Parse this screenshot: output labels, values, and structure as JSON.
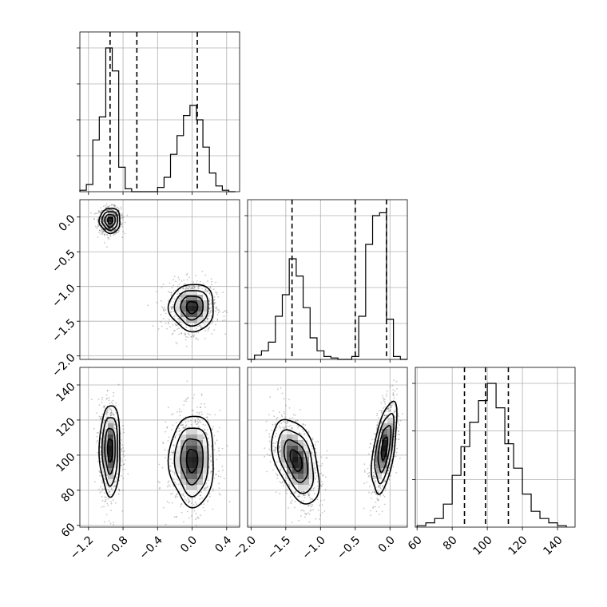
{
  "chart_data": {
    "type": "corner",
    "title": "",
    "parameters": [
      {
        "range": [
          -1.3,
          0.55
        ],
        "ticks": [
          "−1.2",
          "−0.8",
          "−0.4",
          "0.0",
          "0.4"
        ],
        "tick_values": [
          -1.2,
          -0.8,
          -0.4,
          0.0,
          0.4
        ],
        "quantiles": [
          -0.95,
          -0.64,
          0.06
        ],
        "hist_edges": [
          -1.3,
          -1.225,
          -1.15,
          -1.075,
          -1.0,
          -0.925,
          -0.85,
          -0.775,
          -0.7,
          -0.625,
          -0.55,
          -0.475,
          -0.4,
          -0.325,
          -0.25,
          -0.175,
          -0.1,
          -0.025,
          0.05,
          0.125,
          0.2,
          0.275,
          0.35,
          0.425,
          0.5
        ],
        "hist_counts": [
          0.01,
          0.05,
          0.36,
          0.52,
          1.0,
          0.84,
          0.17,
          0.02,
          0.0,
          0.0,
          0.0,
          0.0,
          0.03,
          0.1,
          0.26,
          0.39,
          0.53,
          0.6,
          0.5,
          0.31,
          0.13,
          0.04,
          0.01,
          0.0
        ]
      },
      {
        "range": [
          -2.05,
          0.25
        ],
        "ticks": [
          "−2.0",
          "−1.5",
          "−1.0",
          "−0.5",
          "0.0"
        ],
        "tick_values": [
          -2.0,
          -1.5,
          -1.0,
          -0.5,
          0.0
        ],
        "quantiles": [
          -1.41,
          -0.5,
          -0.05
        ],
        "hist_edges": [
          -2.05,
          -1.95,
          -1.85,
          -1.75,
          -1.65,
          -1.55,
          -1.45,
          -1.35,
          -1.25,
          -1.15,
          -1.05,
          -0.95,
          -0.85,
          -0.75,
          -0.65,
          -0.55,
          -0.45,
          -0.35,
          -0.25,
          -0.15,
          -0.05,
          0.05,
          0.15,
          0.25
        ],
        "hist_counts": [
          0.0,
          0.03,
          0.06,
          0.12,
          0.3,
          0.45,
          0.7,
          0.58,
          0.36,
          0.15,
          0.06,
          0.02,
          0.01,
          0.0,
          0.0,
          0.02,
          0.3,
          0.8,
          1.0,
          1.02,
          0.28,
          0.02,
          0.0
        ]
      },
      {
        "range": [
          59,
          150
        ],
        "ticks": [
          "60",
          "80",
          "100",
          "120",
          "140"
        ],
        "tick_values": [
          60,
          80,
          100,
          120,
          140
        ],
        "quantiles": [
          87,
          99,
          112
        ],
        "hist_edges": [
          60,
          65,
          70,
          75,
          80,
          85,
          90,
          95,
          100,
          105,
          110,
          115,
          120,
          125,
          130,
          135,
          140,
          145
        ],
        "hist_counts": [
          0.01,
          0.03,
          0.06,
          0.16,
          0.36,
          0.56,
          0.73,
          0.88,
          1.0,
          0.83,
          0.58,
          0.41,
          0.23,
          0.11,
          0.06,
          0.03,
          0.01
        ]
      }
    ],
    "histogram_y_ticks": {
      "0": [
        0.25,
        0.5,
        0.75,
        1.0
      ],
      "1": [
        0.25,
        0.5,
        0.75,
        1.0
      ],
      "2": [
        0.33,
        0.67,
        1.0
      ]
    },
    "modes": {
      "1_0": [
        {
          "center": [
            -0.95,
            -0.05
          ],
          "spread": [
            0.06,
            0.09
          ],
          "rho": 0.0,
          "weight": 0.5
        },
        {
          "center": [
            0.0,
            -1.3
          ],
          "spread": [
            0.13,
            0.17
          ],
          "rho": 0.0,
          "weight": 0.5
        }
      ],
      "2_0": [
        {
          "center": [
            -0.95,
            103
          ],
          "spread": [
            0.06,
            13
          ],
          "rho": 0.0,
          "weight": 0.5
        },
        {
          "center": [
            0.0,
            97
          ],
          "spread": [
            0.13,
            13
          ],
          "rho": 0.0,
          "weight": 0.5
        }
      ],
      "2_1": [
        {
          "center": [
            -1.35,
            97
          ],
          "spread": [
            0.17,
            12
          ],
          "rho": -0.45,
          "weight": 0.5
        },
        {
          "center": [
            -0.08,
            104
          ],
          "spread": [
            0.09,
            13
          ],
          "rho": 0.55,
          "weight": 0.5
        }
      ]
    },
    "grid": true
  }
}
